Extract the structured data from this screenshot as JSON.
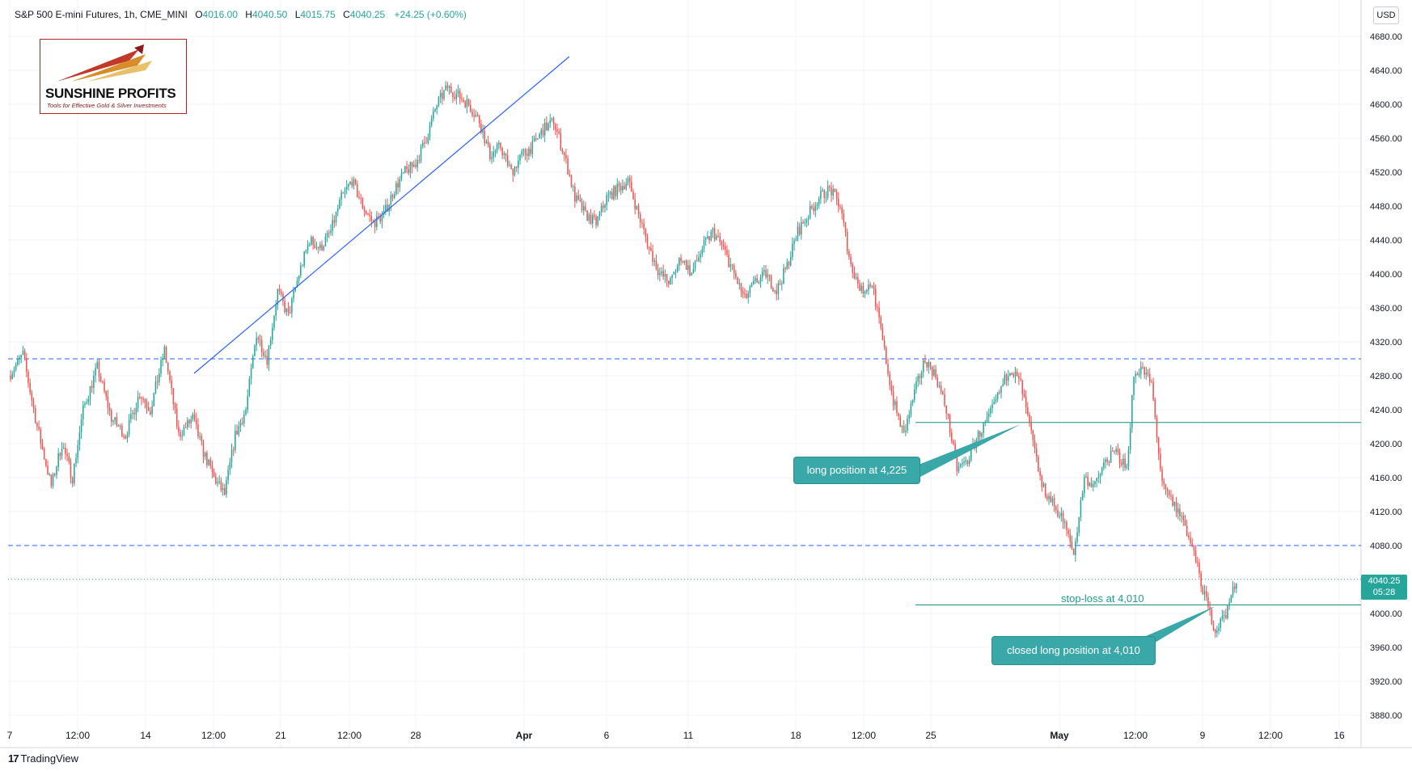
{
  "header": {
    "title": "S&P 500 E-mini Futures, 1h, CME_MINI",
    "o_label": "O",
    "o": "4016.00",
    "h_label": "H",
    "h": "4040.50",
    "l_label": "L",
    "l": "4015.75",
    "c_label": "C",
    "c": "4040.25",
    "change": "+24.25 (+0.60%)"
  },
  "currency": "USD",
  "logo": {
    "title": "SUNSHINE PROFITS",
    "tagline": "Tools for Effective Gold & Silver Investments"
  },
  "price_tag": {
    "price": "4040.25",
    "countdown": "05:28"
  },
  "annotations": {
    "long_entry": "long position at 4,225",
    "stop_loss": "stop-loss at 4,010",
    "closed": "closed long position at 4,010"
  },
  "branding": "TradingView",
  "colors": {
    "up": "#26a69a",
    "down": "#ef5350",
    "support": "#2962ff",
    "position": "#1f8f86",
    "callout": "#3aa7a8"
  },
  "chart_data": {
    "type": "candlestick",
    "title": "S&P 500 E-mini Futures, 1h, CME_MINI",
    "ylabel": "USD",
    "ylim": [
      3860,
      4700
    ],
    "yticks": [
      3880,
      3920,
      3960,
      4000,
      4040,
      4080,
      4120,
      4160,
      4200,
      4240,
      4280,
      4320,
      4360,
      4400,
      4440,
      4480,
      4520,
      4560,
      4600,
      4640,
      4680
    ],
    "xtick_labels": [
      "7",
      "12:00",
      "14",
      "12:00",
      "21",
      "12:00",
      "28",
      "Apr",
      "6",
      "11",
      "18",
      "12:00",
      "25",
      "May",
      "12:00",
      "9",
      "12:00",
      "16"
    ],
    "price_path": [
      [
        0,
        4280
      ],
      [
        8,
        4305
      ],
      [
        16,
        4220
      ],
      [
        24,
        4150
      ],
      [
        30,
        4200
      ],
      [
        36,
        4160
      ],
      [
        42,
        4240
      ],
      [
        50,
        4290
      ],
      [
        58,
        4230
      ],
      [
        66,
        4210
      ],
      [
        74,
        4260
      ],
      [
        80,
        4240
      ],
      [
        88,
        4310
      ],
      [
        96,
        4210
      ],
      [
        104,
        4230
      ],
      [
        110,
        4190
      ],
      [
        116,
        4160
      ],
      [
        122,
        4140
      ],
      [
        128,
        4210
      ],
      [
        134,
        4240
      ],
      [
        140,
        4330
      ],
      [
        146,
        4300
      ],
      [
        152,
        4380
      ],
      [
        158,
        4350
      ],
      [
        164,
        4400
      ],
      [
        170,
        4440
      ],
      [
        176,
        4430
      ],
      [
        182,
        4450
      ],
      [
        188,
        4490
      ],
      [
        194,
        4510
      ],
      [
        200,
        4480
      ],
      [
        206,
        4460
      ],
      [
        212,
        4470
      ],
      [
        218,
        4500
      ],
      [
        224,
        4520
      ],
      [
        230,
        4530
      ],
      [
        236,
        4560
      ],
      [
        242,
        4600
      ],
      [
        248,
        4620
      ],
      [
        254,
        4610
      ],
      [
        260,
        4600
      ],
      [
        266,
        4580
      ],
      [
        272,
        4540
      ],
      [
        278,
        4550
      ],
      [
        284,
        4520
      ],
      [
        290,
        4540
      ],
      [
        296,
        4550
      ],
      [
        302,
        4570
      ],
      [
        308,
        4580
      ],
      [
        314,
        4540
      ],
      [
        320,
        4490
      ],
      [
        326,
        4470
      ],
      [
        332,
        4460
      ],
      [
        338,
        4490
      ],
      [
        344,
        4500
      ],
      [
        350,
        4510
      ],
      [
        356,
        4470
      ],
      [
        362,
        4430
      ],
      [
        368,
        4400
      ],
      [
        374,
        4390
      ],
      [
        380,
        4420
      ],
      [
        386,
        4400
      ],
      [
        392,
        4430
      ],
      [
        398,
        4450
      ],
      [
        404,
        4430
      ],
      [
        410,
        4400
      ],
      [
        416,
        4370
      ],
      [
        422,
        4390
      ],
      [
        428,
        4400
      ],
      [
        434,
        4380
      ],
      [
        440,
        4410
      ],
      [
        446,
        4450
      ],
      [
        452,
        4470
      ],
      [
        458,
        4490
      ],
      [
        464,
        4500
      ],
      [
        470,
        4480
      ],
      [
        476,
        4410
      ],
      [
        482,
        4380
      ],
      [
        488,
        4390
      ],
      [
        494,
        4320
      ],
      [
        500,
        4250
      ],
      [
        506,
        4210
      ],
      [
        512,
        4260
      ],
      [
        518,
        4300
      ],
      [
        524,
        4280
      ],
      [
        530,
        4240
      ],
      [
        536,
        4170
      ],
      [
        542,
        4180
      ],
      [
        548,
        4210
      ],
      [
        554,
        4230
      ],
      [
        560,
        4260
      ],
      [
        566,
        4290
      ],
      [
        572,
        4270
      ],
      [
        578,
        4210
      ],
      [
        584,
        4150
      ],
      [
        590,
        4130
      ],
      [
        596,
        4110
      ],
      [
        602,
        4070
      ],
      [
        608,
        4160
      ],
      [
        614,
        4150
      ],
      [
        620,
        4180
      ],
      [
        626,
        4190
      ],
      [
        632,
        4170
      ],
      [
        636,
        4280
      ],
      [
        640,
        4290
      ],
      [
        646,
        4270
      ],
      [
        652,
        4150
      ],
      [
        658,
        4130
      ],
      [
        664,
        4110
      ],
      [
        670,
        4070
      ],
      [
        676,
        4020
      ],
      [
        682,
        3980
      ],
      [
        688,
        4000
      ],
      [
        694,
        4040
      ]
    ],
    "hlines_dashed": [
      4300,
      4080
    ],
    "position_lines": [
      4225,
      4010
    ],
    "last_price": 4040.25
  }
}
